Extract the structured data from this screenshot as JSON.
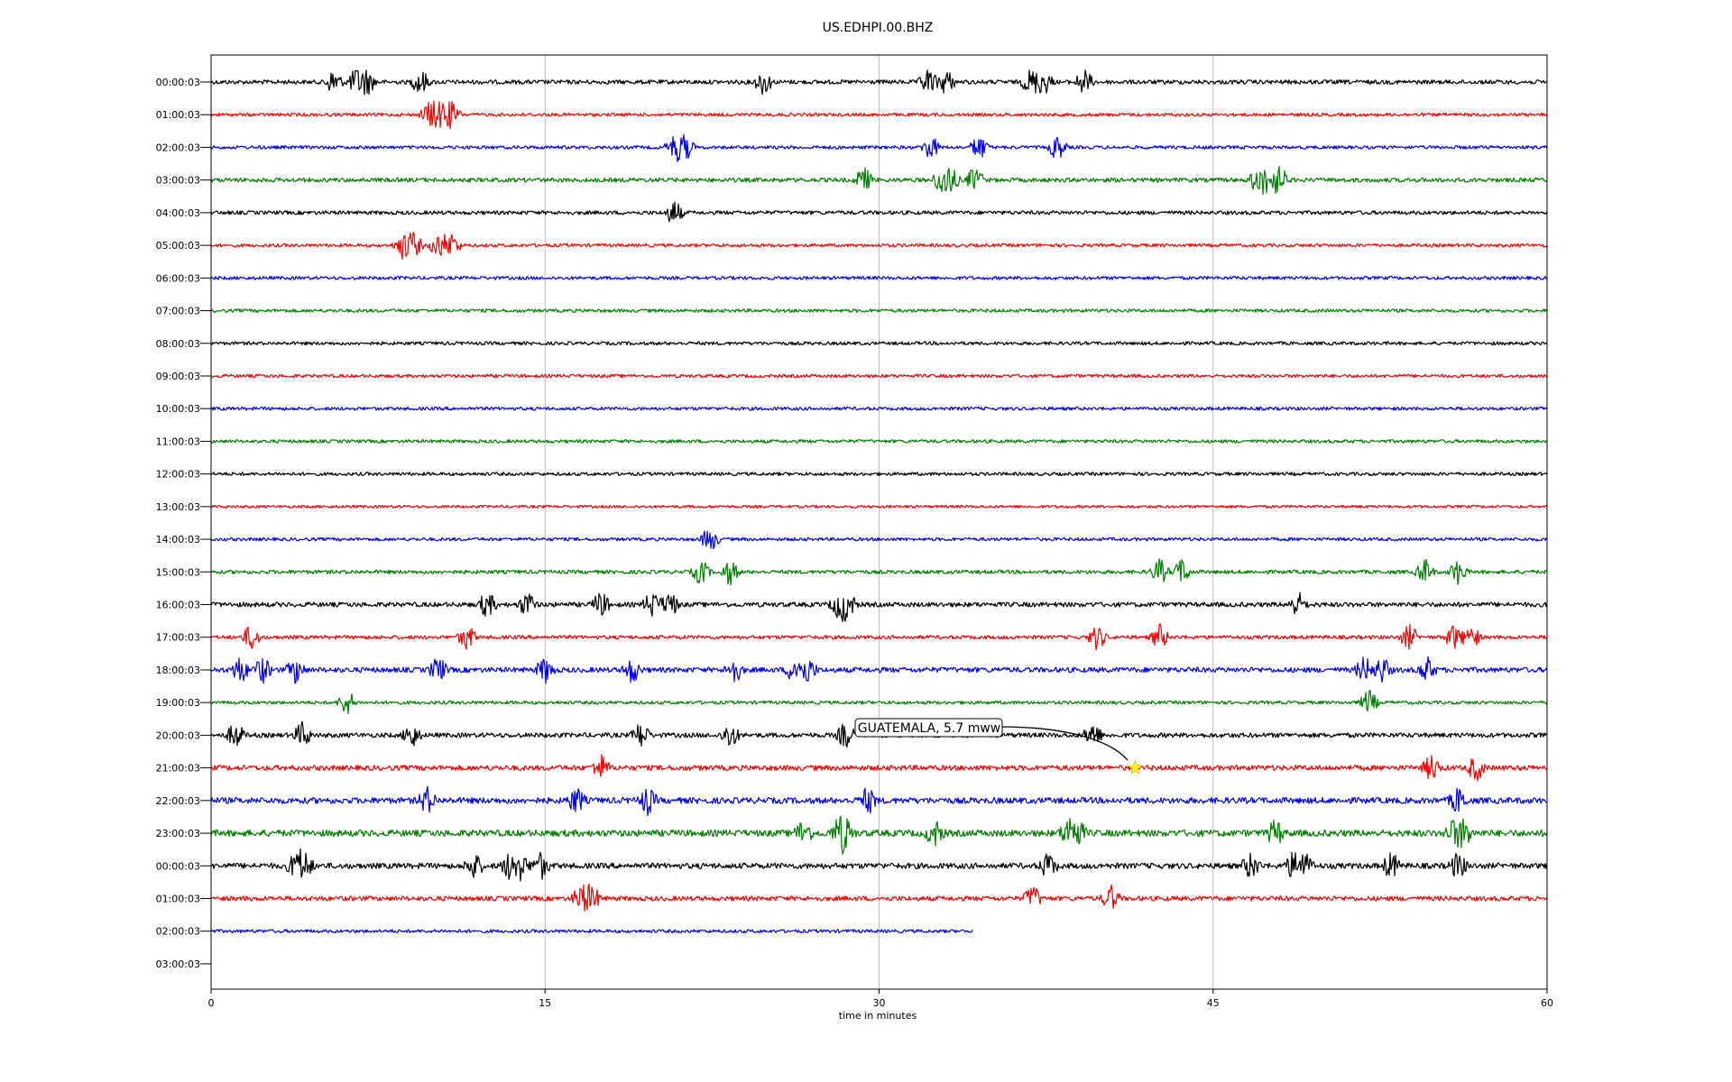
{
  "chart_data": {
    "type": "line",
    "title": "US.EDHPI.00.BHZ",
    "xlabel": "time in minutes",
    "xlim": [
      0,
      60
    ],
    "x_ticks": [
      "0",
      "15",
      "30",
      "45",
      "60"
    ],
    "x_tick_values": [
      0,
      15,
      30,
      45,
      60
    ],
    "grid": "vertical",
    "rows": [
      {
        "label": "00:00:03",
        "color": "#000000",
        "end": 60,
        "noise": 0.9,
        "events": [
          5.5,
          6.5,
          7,
          9.4,
          24.8,
          32.2,
          33,
          36.8,
          37.4,
          39.2
        ]
      },
      {
        "label": "01:00:03",
        "color": "#ff0000",
        "end": 60,
        "noise": 0.7,
        "events": [
          9.8,
          10.3,
          10.8
        ]
      },
      {
        "label": "02:00:03",
        "color": "#0000ff",
        "end": 60,
        "noise": 0.7,
        "events": [
          20.8,
          21.3,
          32.3,
          34.5,
          38
        ]
      },
      {
        "label": "03:00:03",
        "color": "#008000",
        "end": 60,
        "noise": 0.9,
        "events": [
          29.3,
          32.8,
          33.2,
          34.3,
          47,
          47.5,
          48
        ]
      },
      {
        "label": "04:00:03",
        "color": "#000000",
        "end": 60,
        "noise": 0.8,
        "events": [
          20.8
        ]
      },
      {
        "label": "05:00:03",
        "color": "#ff0000",
        "end": 60,
        "noise": 0.7,
        "events": [
          8.6,
          9.1,
          10.2,
          10.8
        ]
      },
      {
        "label": "06:00:03",
        "color": "#0000ff",
        "end": 60,
        "noise": 0.7,
        "events": []
      },
      {
        "label": "07:00:03",
        "color": "#008000",
        "end": 60,
        "noise": 0.7,
        "events": []
      },
      {
        "label": "08:00:03",
        "color": "#000000",
        "end": 60,
        "noise": 0.7,
        "events": []
      },
      {
        "label": "09:00:03",
        "color": "#ff0000",
        "end": 60,
        "noise": 0.7,
        "events": []
      },
      {
        "label": "10:00:03",
        "color": "#0000ff",
        "end": 60,
        "noise": 0.7,
        "events": []
      },
      {
        "label": "11:00:03",
        "color": "#008000",
        "end": 60,
        "noise": 0.7,
        "events": []
      },
      {
        "label": "12:00:03",
        "color": "#000000",
        "end": 60,
        "noise": 0.7,
        "events": []
      },
      {
        "label": "13:00:03",
        "color": "#ff0000",
        "end": 60,
        "noise": 0.6,
        "events": []
      },
      {
        "label": "14:00:03",
        "color": "#0000ff",
        "end": 60,
        "noise": 0.7,
        "events": [
          22.4
        ]
      },
      {
        "label": "15:00:03",
        "color": "#008000",
        "end": 60,
        "noise": 0.8,
        "events": [
          22,
          23.3,
          42.6,
          43.6,
          54.5,
          56
        ]
      },
      {
        "label": "16:00:03",
        "color": "#000000",
        "end": 60,
        "noise": 1.0,
        "events": [
          12.4,
          14.2,
          17.5,
          19.8,
          20.6,
          28.2,
          28.6,
          48.8
        ]
      },
      {
        "label": "17:00:03",
        "color": "#ff0000",
        "end": 60,
        "noise": 0.8,
        "events": [
          1.8,
          11.5,
          39.8,
          42.6,
          53.8,
          55.8,
          56.6
        ]
      },
      {
        "label": "18:00:03",
        "color": "#0000ff",
        "end": 60,
        "noise": 1.1,
        "events": [
          1.3,
          2.3,
          3.8,
          10.2,
          15,
          18.9,
          23.5,
          26.2,
          26.8,
          51.8,
          52.6,
          54.6
        ]
      },
      {
        "label": "19:00:03",
        "color": "#008000",
        "end": 60,
        "noise": 0.7,
        "events": [
          6.1,
          52
        ]
      },
      {
        "label": "20:00:03",
        "color": "#000000",
        "end": 60,
        "noise": 1.0,
        "events": [
          1.1,
          4.1,
          9,
          19.3,
          23.3,
          28.5,
          39.6
        ]
      },
      {
        "label": "21:00:03",
        "color": "#ff0000",
        "end": 60,
        "noise": 1.1,
        "events": [
          17.5,
          54.8,
          56.8
        ]
      },
      {
        "label": "22:00:03",
        "color": "#0000ff",
        "end": 60,
        "noise": 1.3,
        "events": [
          9.7,
          16.4,
          19.6,
          29.5,
          56
        ]
      },
      {
        "label": "23:00:03",
        "color": "#008000",
        "end": 60,
        "noise": 1.4,
        "events": [
          26.6,
          28.2,
          28.5,
          32.5,
          38.5,
          38.9,
          47.8,
          55.8,
          56.3
        ]
      },
      {
        "label": "00:00:03",
        "color": "#000000",
        "end": 60,
        "noise": 1.2,
        "events": [
          3.8,
          4.2,
          11.8,
          13.4,
          13.9,
          14.8,
          37.6,
          46.7,
          48.6,
          49.1,
          53,
          56
        ]
      },
      {
        "label": "01:00:03",
        "color": "#ff0000",
        "end": 60,
        "noise": 1.0,
        "events": [
          16.6,
          17.1,
          36.9,
          40.4
        ]
      },
      {
        "label": "02:00:03",
        "color": "#0000ff",
        "end": 34.2,
        "noise": 0.7,
        "events": []
      },
      {
        "label": "03:00:03",
        "color": "#0000ff",
        "end": 0,
        "noise": 0,
        "events": []
      }
    ],
    "annotation": {
      "text": "GUATEMALA, 5.7 mww",
      "row": 21,
      "x_minutes": 41.5,
      "marker_color": "#ffff00"
    }
  }
}
